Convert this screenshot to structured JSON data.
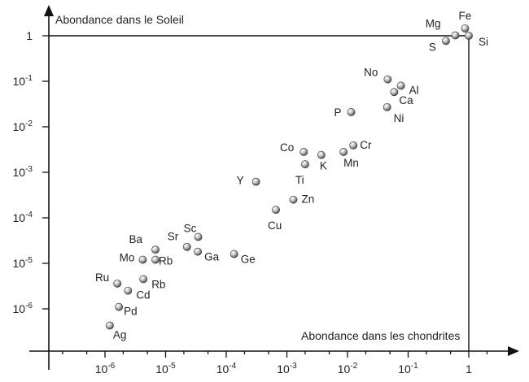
{
  "chart_data": {
    "type": "scatter",
    "xscale": "log",
    "yscale": "log",
    "x_axis_label": "Abondance dans les chondrites",
    "y_axis_label": "Abondance dans le  Soleil",
    "xlim": [
      1e-07,
      3
    ],
    "ylim": [
      1e-07,
      1.6
    ],
    "x_ticks": [
      {
        "base": "10",
        "exp": "-6"
      },
      {
        "base": "10",
        "exp": "-5"
      },
      {
        "base": "10",
        "exp": "-4"
      },
      {
        "base": "10",
        "exp": "-3"
      },
      {
        "base": "10",
        "exp": "-2"
      },
      {
        "base": "10",
        "exp": "-1"
      },
      {
        "base": "1",
        "exp": ""
      }
    ],
    "y_ticks": [
      {
        "base": "10",
        "exp": "-6"
      },
      {
        "base": "10",
        "exp": "-5"
      },
      {
        "base": "10",
        "exp": "-4"
      },
      {
        "base": "10",
        "exp": "-3"
      },
      {
        "base": "10",
        "exp": "-2"
      },
      {
        "base": "10",
        "exp": "-1"
      },
      {
        "base": "1",
        "exp": ""
      }
    ],
    "points": [
      {
        "label": "Fe",
        "x": 0.87,
        "y": 1.45
      },
      {
        "label": "Mg",
        "x": 0.6,
        "y": 1.02
      },
      {
        "label": "Si",
        "x": 1.0,
        "y": 1.0
      },
      {
        "label": "S",
        "x": 0.42,
        "y": 0.77
      },
      {
        "label": "No",
        "x": 0.046,
        "y": 0.11
      },
      {
        "label": "Al",
        "x": 0.076,
        "y": 0.08
      },
      {
        "label": "Ca",
        "x": 0.059,
        "y": 0.058
      },
      {
        "label": "Ni",
        "x": 0.045,
        "y": 0.027
      },
      {
        "label": "P",
        "x": 0.0115,
        "y": 0.021
      },
      {
        "label": "Co",
        "x": 0.0019,
        "y": 0.0028
      },
      {
        "label": "Cr",
        "x": 0.0125,
        "y": 0.0039
      },
      {
        "label": "Mn",
        "x": 0.0086,
        "y": 0.0028
      },
      {
        "label": "K",
        "x": 0.0037,
        "y": 0.0024
      },
      {
        "label": "Ti",
        "x": 0.002,
        "y": 0.0015
      },
      {
        "label": "Y",
        "x": 0.00031,
        "y": 0.00062
      },
      {
        "label": "Zn",
        "x": 0.00128,
        "y": 0.00025
      },
      {
        "label": "Cu",
        "x": 0.00066,
        "y": 0.00015
      },
      {
        "label": "Sc",
        "x": 3.45e-05,
        "y": 3.8e-05
      },
      {
        "label": "Sr",
        "x": 2.25e-05,
        "y": 2.3e-05
      },
      {
        "label": "Ga",
        "x": 3.4e-05,
        "y": 1.8e-05
      },
      {
        "label": "Ge",
        "x": 0.000135,
        "y": 1.6e-05
      },
      {
        "label": "Ba",
        "x": 6.8e-06,
        "y": 2e-05
      },
      {
        "label": "Rb",
        "x": 6.8e-06,
        "y": 1.2e-05
      },
      {
        "label": "Mo",
        "x": 4.2e-06,
        "y": 1.2e-05
      },
      {
        "label": "Rb",
        "x": 4.3e-06,
        "y": 4.5e-06
      },
      {
        "label": "Ru",
        "x": 1.6e-06,
        "y": 3.6e-06
      },
      {
        "label": "Cd",
        "x": 2.4e-06,
        "y": 2.5e-06
      },
      {
        "label": "Pd",
        "x": 1.7e-06,
        "y": 1.1e-06
      },
      {
        "label": "Ag",
        "x": 1.2e-06,
        "y": 4.3e-07
      }
    ]
  }
}
